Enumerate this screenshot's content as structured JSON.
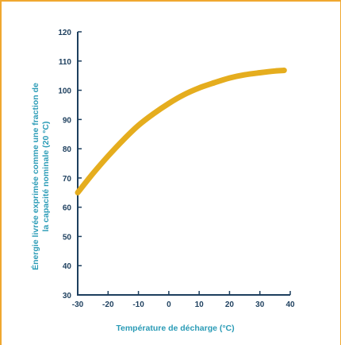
{
  "chart_data": {
    "type": "line",
    "title": "",
    "xlabel": "Température de décharge (°C)",
    "ylabel_lines": [
      "Énergie livrée exprimée comme une fraction de",
      "la capacité nominale (20 °C)"
    ],
    "xlim": [
      -30,
      40
    ],
    "ylim": [
      30,
      120
    ],
    "x_ticks": [
      -30,
      -20,
      -10,
      0,
      10,
      20,
      30,
      40
    ],
    "y_ticks": [
      30,
      40,
      50,
      60,
      70,
      80,
      90,
      100,
      110,
      120
    ],
    "x_tick_labels": [
      "-30",
      "-20",
      "-10",
      "0",
      "10",
      "20",
      "30",
      "40"
    ],
    "y_tick_labels": [
      "30",
      "40",
      "50",
      "60",
      "70",
      "80",
      "90",
      "100",
      "110",
      "120"
    ],
    "grid": false,
    "series": [
      {
        "x": [
          -30,
          -25,
          -20,
          -15,
          -10,
          -5,
          0,
          5,
          10,
          15,
          20,
          25,
          30,
          35,
          38
        ],
        "y": [
          65,
          71.5,
          77.5,
          83,
          88,
          92,
          95.5,
          98.5,
          100.8,
          102.6,
          104.2,
          105.3,
          106,
          106.6,
          106.8
        ]
      }
    ],
    "colors": {
      "line": "#e5ad1e",
      "axis": "#1d3f5e",
      "axis_title": "#2a9bb6",
      "frame": "#f0a830"
    }
  }
}
